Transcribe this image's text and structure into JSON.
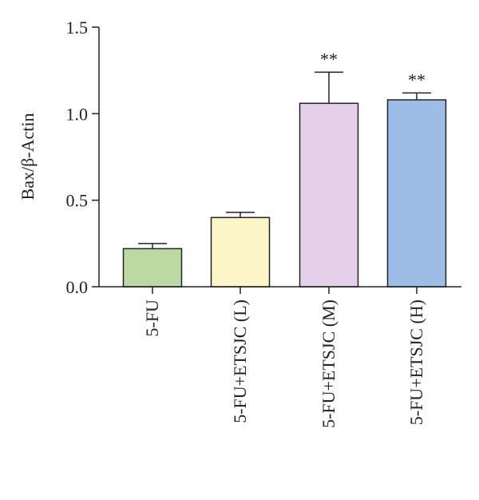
{
  "chart_data": {
    "type": "bar",
    "title": "",
    "xlabel": "",
    "ylabel": "Bax/β-Actin",
    "ylim": [
      0,
      1.5
    ],
    "yticks": [
      "0.0",
      "0.5",
      "1.0",
      "1.5"
    ],
    "grid": false,
    "legend": "none",
    "categories": [
      "5-FU",
      "5-FU+ETSJC (L)",
      "5-FU+ETSJC (M)",
      "5-FU+ETSJC (H)"
    ],
    "values": [
      0.22,
      0.4,
      1.06,
      1.08
    ],
    "errors": [
      0.03,
      0.03,
      0.18,
      0.04
    ],
    "significance": [
      "",
      "",
      "**",
      "**"
    ],
    "colors": [
      "#bcd9a3",
      "#fbf5c8",
      "#e4d0e8",
      "#9dbde6"
    ],
    "edge_color": "#222222"
  }
}
